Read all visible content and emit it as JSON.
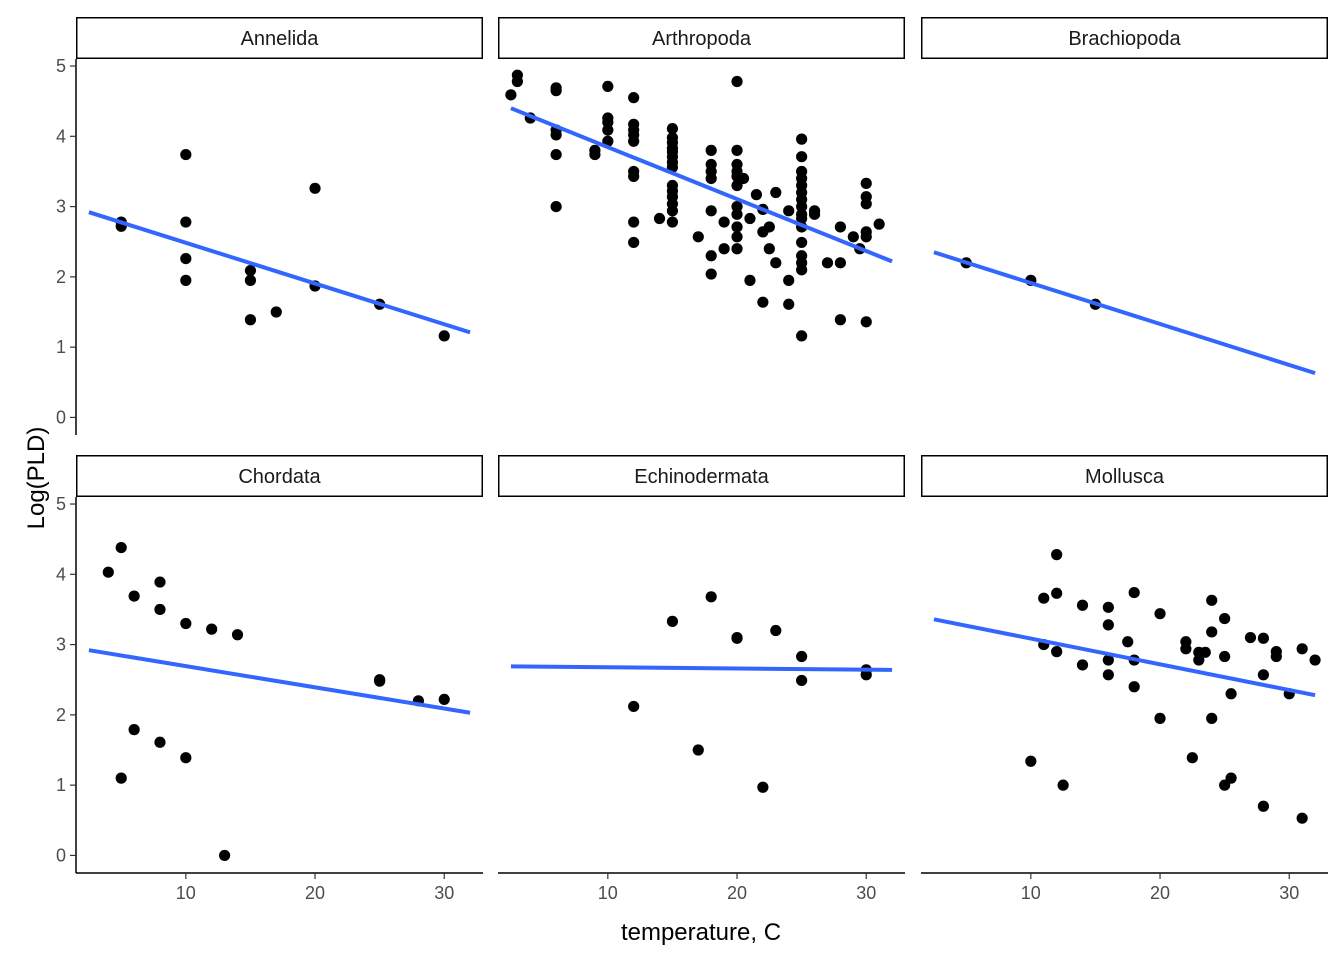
{
  "chart_data": {
    "type": "scatter",
    "facet_layout": "3 columns x 2 rows",
    "xlabel": "temperature, C",
    "ylabel": "Log(PLD)",
    "xlim": [
      1.5,
      33
    ],
    "ylim": [
      -0.25,
      5.1
    ],
    "x_ticks": [
      10,
      20,
      30
    ],
    "y_ticks": [
      0,
      1,
      2,
      3,
      4,
      5
    ],
    "point_color": "#000000",
    "fit_color": "#3366FF",
    "grid": false,
    "legend": "none",
    "panels": [
      {
        "name": "Annelida",
        "fit": {
          "x": [
            2.5,
            32
          ],
          "y": [
            2.92,
            1.21
          ]
        },
        "points": [
          [
            5,
            2.78
          ],
          [
            5,
            2.72
          ],
          [
            10,
            3.74
          ],
          [
            10,
            2.78
          ],
          [
            10,
            2.26
          ],
          [
            10,
            1.95
          ],
          [
            15,
            2.09
          ],
          [
            15,
            1.95
          ],
          [
            15,
            1.39
          ],
          [
            17,
            1.5
          ],
          [
            20,
            3.26
          ],
          [
            20,
            1.87
          ],
          [
            25,
            1.61
          ],
          [
            30,
            1.16
          ]
        ]
      },
      {
        "name": "Arthropoda",
        "fit": {
          "x": [
            2.5,
            32
          ],
          "y": [
            4.4,
            2.22
          ]
        },
        "points": [
          [
            2.5,
            4.59
          ],
          [
            3,
            4.87
          ],
          [
            3,
            4.78
          ],
          [
            4,
            4.26
          ],
          [
            6,
            4.69
          ],
          [
            6,
            4.65
          ],
          [
            6,
            4.09
          ],
          [
            6,
            4.02
          ],
          [
            6,
            3.74
          ],
          [
            6,
            3.0
          ],
          [
            9,
            3.8
          ],
          [
            9,
            3.74
          ],
          [
            10,
            4.71
          ],
          [
            10,
            4.26
          ],
          [
            10,
            4.2
          ],
          [
            10,
            4.09
          ],
          [
            10,
            3.93
          ],
          [
            12,
            4.55
          ],
          [
            12,
            4.17
          ],
          [
            12,
            4.09
          ],
          [
            12,
            4.02
          ],
          [
            12,
            3.93
          ],
          [
            12,
            3.5
          ],
          [
            12,
            3.43
          ],
          [
            12,
            2.78
          ],
          [
            12,
            2.49
          ],
          [
            14,
            2.83
          ],
          [
            15,
            4.11
          ],
          [
            15,
            3.98
          ],
          [
            15,
            3.91
          ],
          [
            15,
            3.83
          ],
          [
            15,
            3.78
          ],
          [
            15,
            3.71
          ],
          [
            15,
            3.63
          ],
          [
            15,
            3.56
          ],
          [
            15,
            3.3
          ],
          [
            15,
            3.22
          ],
          [
            15,
            3.14
          ],
          [
            15,
            3.04
          ],
          [
            15,
            2.94
          ],
          [
            15,
            2.78
          ],
          [
            17,
            2.57
          ],
          [
            18,
            3.8
          ],
          [
            18,
            3.6
          ],
          [
            18,
            3.5
          ],
          [
            18,
            3.4
          ],
          [
            18,
            2.94
          ],
          [
            18,
            2.3
          ],
          [
            18,
            2.04
          ],
          [
            19,
            2.78
          ],
          [
            19,
            2.4
          ],
          [
            20,
            4.78
          ],
          [
            20,
            3.8
          ],
          [
            20,
            3.6
          ],
          [
            20,
            3.5
          ],
          [
            20,
            3.43
          ],
          [
            20,
            3.3
          ],
          [
            20,
            3.0
          ],
          [
            20,
            2.89
          ],
          [
            20,
            2.71
          ],
          [
            20,
            2.57
          ],
          [
            20,
            2.4
          ],
          [
            20.5,
            3.4
          ],
          [
            21,
            1.95
          ],
          [
            21,
            2.83
          ],
          [
            21.5,
            3.17
          ],
          [
            22,
            2.96
          ],
          [
            22,
            2.64
          ],
          [
            22,
            1.64
          ],
          [
            22.5,
            2.71
          ],
          [
            22.5,
            2.4
          ],
          [
            23,
            3.2
          ],
          [
            23,
            2.2
          ],
          [
            24,
            2.94
          ],
          [
            24,
            1.95
          ],
          [
            24,
            1.61
          ],
          [
            25,
            3.96
          ],
          [
            25,
            3.71
          ],
          [
            25,
            3.5
          ],
          [
            25,
            3.4
          ],
          [
            25,
            3.3
          ],
          [
            25,
            3.2
          ],
          [
            25,
            3.1
          ],
          [
            25,
            3.0
          ],
          [
            25,
            2.89
          ],
          [
            25,
            2.83
          ],
          [
            25,
            2.71
          ],
          [
            25,
            2.49
          ],
          [
            25,
            2.3
          ],
          [
            25,
            2.1
          ],
          [
            25,
            2.2
          ],
          [
            25,
            1.16
          ],
          [
            26,
            2.94
          ],
          [
            26,
            2.89
          ],
          [
            27,
            2.2
          ],
          [
            28,
            2.71
          ],
          [
            28,
            2.2
          ],
          [
            28,
            1.39
          ],
          [
            29,
            2.57
          ],
          [
            29.5,
            2.4
          ],
          [
            30,
            3.33
          ],
          [
            30,
            3.14
          ],
          [
            30,
            3.04
          ],
          [
            30,
            2.64
          ],
          [
            30,
            2.57
          ],
          [
            30,
            1.36
          ],
          [
            31,
            2.75
          ]
        ]
      },
      {
        "name": "Brachiopoda",
        "fit": {
          "x": [
            2.5,
            32
          ],
          "y": [
            2.35,
            0.63
          ]
        },
        "points": [
          [
            5,
            2.2
          ],
          [
            10,
            1.95
          ],
          [
            15,
            1.61
          ]
        ]
      },
      {
        "name": "Chordata",
        "fit": {
          "x": [
            2.5,
            32
          ],
          "y": [
            2.92,
            2.03
          ]
        },
        "points": [
          [
            4,
            4.03
          ],
          [
            5,
            4.38
          ],
          [
            5,
            1.1
          ],
          [
            6,
            3.69
          ],
          [
            6,
            1.79
          ],
          [
            8,
            3.89
          ],
          [
            8,
            3.5
          ],
          [
            8,
            1.61
          ],
          [
            10,
            3.3
          ],
          [
            10,
            1.39
          ],
          [
            12,
            3.22
          ],
          [
            13,
            0.0
          ],
          [
            14,
            3.14
          ],
          [
            25,
            2.5
          ],
          [
            25,
            2.48
          ],
          [
            28,
            2.2
          ],
          [
            30,
            2.22
          ]
        ]
      },
      {
        "name": "Echinodermata",
        "fit": {
          "x": [
            2.5,
            32
          ],
          "y": [
            2.69,
            2.64
          ]
        },
        "points": [
          [
            12,
            2.12
          ],
          [
            15,
            3.33
          ],
          [
            17,
            1.5
          ],
          [
            18,
            3.68
          ],
          [
            20,
            3.1
          ],
          [
            20,
            3.09
          ],
          [
            22,
            0.97
          ],
          [
            23,
            3.2
          ],
          [
            25,
            2.83
          ],
          [
            25,
            2.49
          ],
          [
            30,
            2.64
          ],
          [
            30,
            2.57
          ]
        ]
      },
      {
        "name": "Mollusca",
        "fit": {
          "x": [
            2.5,
            32
          ],
          "y": [
            3.36,
            2.28
          ]
        },
        "points": [
          [
            10,
            1.34
          ],
          [
            11,
            3.66
          ],
          [
            11,
            3.0
          ],
          [
            12,
            4.28
          ],
          [
            12,
            3.73
          ],
          [
            12,
            2.9
          ],
          [
            12.5,
            1.0
          ],
          [
            14,
            3.56
          ],
          [
            14,
            2.71
          ],
          [
            16,
            3.53
          ],
          [
            16,
            3.28
          ],
          [
            16,
            2.78
          ],
          [
            16,
            2.57
          ],
          [
            17.5,
            3.04
          ],
          [
            18,
            3.74
          ],
          [
            18,
            2.78
          ],
          [
            18,
            2.4
          ],
          [
            20,
            3.44
          ],
          [
            20,
            1.95
          ],
          [
            22,
            3.04
          ],
          [
            22,
            2.94
          ],
          [
            22.5,
            1.39
          ],
          [
            23,
            2.89
          ],
          [
            23,
            2.78
          ],
          [
            23.5,
            2.89
          ],
          [
            24,
            3.63
          ],
          [
            24,
            3.18
          ],
          [
            24,
            1.95
          ],
          [
            25,
            3.37
          ],
          [
            25,
            2.83
          ],
          [
            25,
            1.0
          ],
          [
            25.5,
            2.3
          ],
          [
            25.5,
            1.1
          ],
          [
            27,
            3.1
          ],
          [
            28,
            3.09
          ],
          [
            28,
            2.57
          ],
          [
            28,
            0.7
          ],
          [
            29,
            2.9
          ],
          [
            29,
            2.83
          ],
          [
            30,
            2.3
          ],
          [
            31,
            2.94
          ],
          [
            31,
            0.53
          ],
          [
            32,
            2.78
          ]
        ]
      }
    ]
  }
}
